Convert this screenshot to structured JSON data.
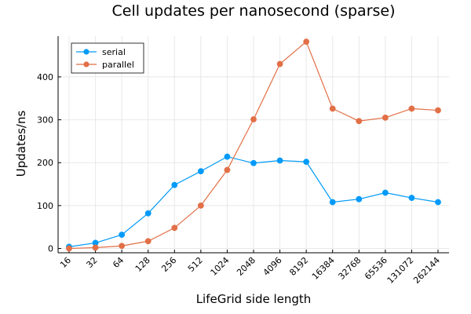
{
  "chart_data": {
    "type": "line",
    "title": "Cell updates per nanosecond (sparse)",
    "xlabel": "LifeGrid side length",
    "ylabel": "Updates/ns",
    "categories": [
      "16",
      "32",
      "64",
      "128",
      "256",
      "512",
      "1024",
      "2048",
      "4096",
      "8192",
      "16384",
      "32768",
      "65536",
      "131072",
      "262144"
    ],
    "ylim": [
      -10,
      495
    ],
    "yticks": [
      0,
      100,
      200,
      300,
      400
    ],
    "ytick_labels": [
      "0",
      "100",
      "200",
      "300",
      "400"
    ],
    "grid": true,
    "legend_position": "top-left",
    "series": [
      {
        "name": "serial",
        "color": "#009af9",
        "values": [
          4,
          13,
          32,
          82,
          148,
          180,
          214,
          199,
          205,
          202,
          108,
          115,
          130,
          118,
          108
        ]
      },
      {
        "name": "parallel",
        "color": "#e26f46",
        "values": [
          0,
          2,
          6,
          17,
          48,
          100,
          183,
          301,
          430,
          482,
          326,
          297,
          305,
          326,
          322
        ]
      }
    ]
  }
}
